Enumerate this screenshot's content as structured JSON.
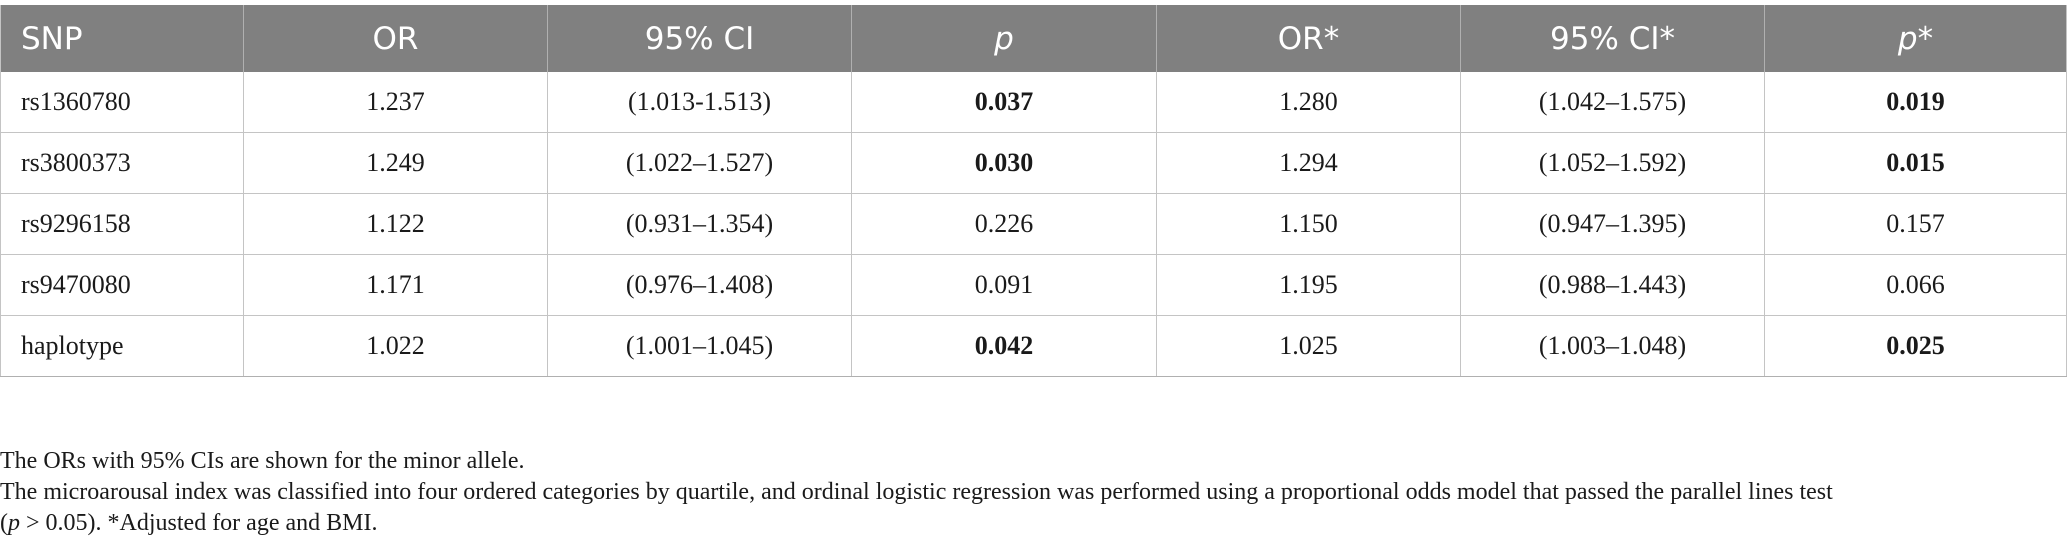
{
  "table": {
    "headers": [
      "SNP",
      "OR",
      "95% CI",
      "p",
      "OR*",
      "95% CI*",
      "p*"
    ],
    "rows": [
      {
        "snp": "rs1360780",
        "or": "1.237",
        "ci": "(1.013-1.513)",
        "p": "0.037",
        "or_adj": "1.280",
        "ci_adj": "(1.042–1.575)",
        "p_adj": "0.019",
        "p_bold": true,
        "p_adj_bold": true
      },
      {
        "snp": "rs3800373",
        "or": "1.249",
        "ci": "(1.022–1.527)",
        "p": "0.030",
        "or_adj": "1.294",
        "ci_adj": "(1.052–1.592)",
        "p_adj": "0.015",
        "p_bold": true,
        "p_adj_bold": true
      },
      {
        "snp": "rs9296158",
        "or": "1.122",
        "ci": "(0.931–1.354)",
        "p": "0.226",
        "or_adj": "1.150",
        "ci_adj": "(0.947–1.395)",
        "p_adj": "0.157",
        "p_bold": false,
        "p_adj_bold": false
      },
      {
        "snp": "rs9470080",
        "or": "1.171",
        "ci": "(0.976–1.408)",
        "p": "0.091",
        "or_adj": "1.195",
        "ci_adj": "(0.988–1.443)",
        "p_adj": "0.066",
        "p_bold": false,
        "p_adj_bold": false
      },
      {
        "snp": "haplotype",
        "or": "1.022",
        "ci": "(1.001–1.045)",
        "p": "0.042",
        "or_adj": "1.025",
        "ci_adj": "(1.003–1.048)",
        "p_adj": "0.025",
        "p_bold": true,
        "p_adj_bold": true
      }
    ]
  },
  "notes": {
    "line1": "The ORs with 95% CIs are shown for the minor allele.",
    "line2_main": "The microarousal index was classified into four ordered categories by quartile, and ordinal logistic regression was performed using a proportional odds model that passed the parallel lines test",
    "line2_open": "(",
    "line2_p": "p",
    "line2_rest": " > 0.05). *Adjusted for age and BMI."
  },
  "colors": {
    "header_bg": "#808080",
    "header_text": "#ffffff",
    "grid": "#c4c4c4"
  }
}
